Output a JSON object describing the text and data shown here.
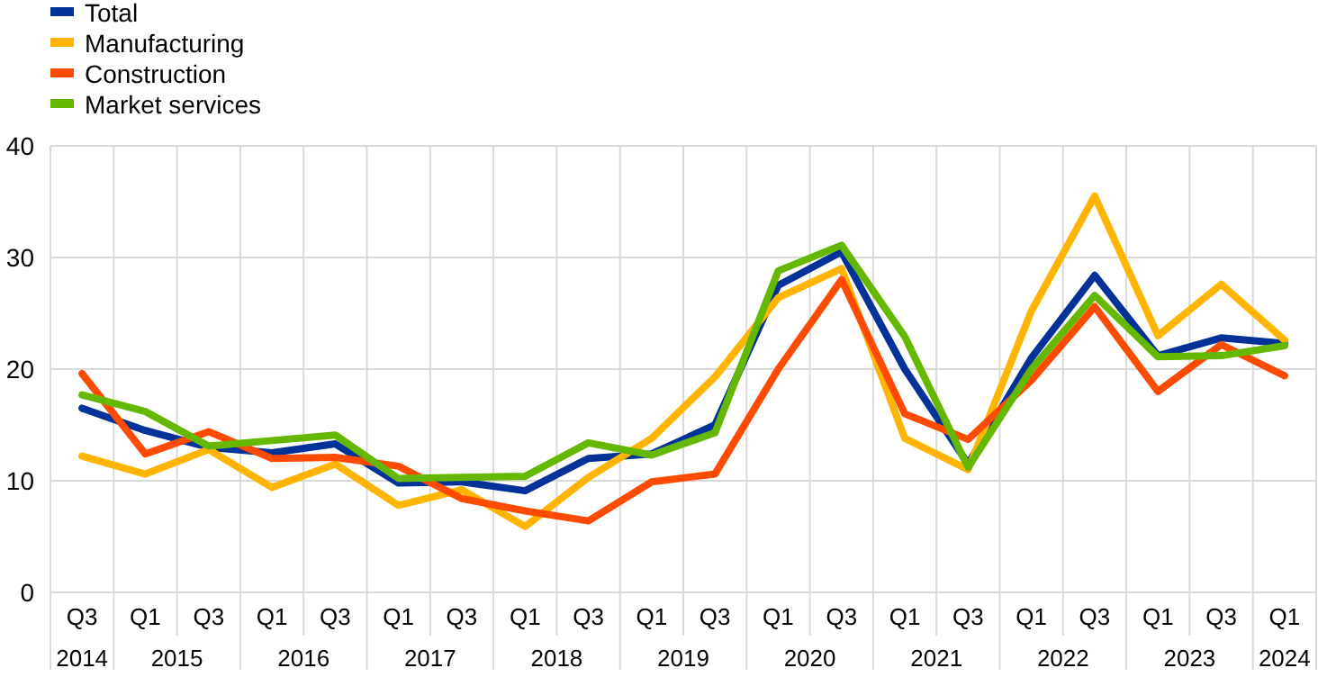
{
  "chart_data": {
    "type": "line",
    "categories": [
      "Q3",
      "Q1",
      "Q3",
      "Q1",
      "Q3",
      "Q1",
      "Q3",
      "Q1",
      "Q3",
      "Q1",
      "Q3",
      "Q1",
      "Q3",
      "Q1",
      "Q3",
      "Q1",
      "Q3",
      "Q1",
      "Q3",
      "Q1"
    ],
    "annotations": [
      "2014",
      "2015",
      "2016",
      "2017",
      "2018",
      "2019",
      "2020",
      "2021",
      "2022",
      "2023",
      "2024"
    ],
    "series": [
      {
        "name": "Total",
        "color": "#003299",
        "values": [
          16.5,
          14.5,
          13,
          12.5,
          13.3,
          9.8,
          9.9,
          9.1,
          12,
          12.4,
          15,
          27.5,
          30.5,
          20,
          11.5,
          21,
          28.4,
          21.2,
          22.8,
          22.3
        ]
      },
      {
        "name": "Manufacturing",
        "color": "#ffb400",
        "values": [
          12.2,
          10.6,
          12.8,
          9.4,
          11.5,
          7.8,
          9.2,
          5.9,
          10.3,
          13.8,
          19.3,
          26.4,
          29,
          13.8,
          11,
          25.2,
          35.5,
          23,
          27.6,
          22.6
        ]
      },
      {
        "name": "Construction",
        "color": "#ff4b00",
        "values": [
          19.6,
          12.4,
          14.4,
          12,
          12.1,
          11.3,
          8.4,
          7.3,
          6.4,
          9.9,
          10.6,
          20,
          28,
          16,
          13.7,
          19,
          25.6,
          18,
          22.2,
          19.4
        ]
      },
      {
        "name": "Market services",
        "color": "#65b800",
        "values": [
          17.7,
          16.2,
          13.1,
          13.6,
          14.1,
          10.2,
          10.3,
          10.4,
          13.4,
          12.3,
          14.3,
          28.8,
          31.1,
          22.9,
          11.2,
          20,
          26.6,
          21.1,
          21.2,
          22.1
        ]
      }
    ],
    "ylim": [
      0,
      40
    ],
    "yticks": [
      0,
      10,
      20,
      30,
      40
    ],
    "grid": true,
    "legend": "top left",
    "marker": "none",
    "line_style": "solid"
  }
}
